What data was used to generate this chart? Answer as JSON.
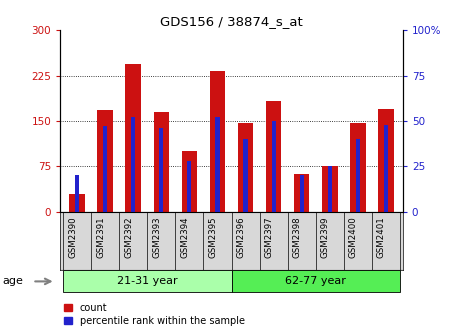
{
  "title": "GDS156 / 38874_s_at",
  "samples": [
    "GSM2390",
    "GSM2391",
    "GSM2392",
    "GSM2393",
    "GSM2394",
    "GSM2395",
    "GSM2396",
    "GSM2397",
    "GSM2398",
    "GSM2399",
    "GSM2400",
    "GSM2401"
  ],
  "counts": [
    30,
    168,
    245,
    165,
    100,
    232,
    147,
    183,
    62,
    75,
    147,
    170
  ],
  "percentiles": [
    20,
    47,
    52,
    46,
    28,
    52,
    40,
    50,
    20,
    25,
    40,
    48
  ],
  "group_labels": [
    "21-31 year",
    "62-77 year"
  ],
  "group1_color": "#aaffaa",
  "group2_color": "#55ee55",
  "bar_color_red": "#CC1111",
  "bar_color_blue": "#2222CC",
  "ylim_left": [
    0,
    300
  ],
  "ylim_right": [
    0,
    100
  ],
  "yticks_left": [
    0,
    75,
    150,
    225,
    300
  ],
  "yticks_right": [
    0,
    25,
    50,
    75,
    100
  ],
  "ytick_labels_left": [
    "0",
    "75",
    "150",
    "225",
    "300"
  ],
  "ytick_labels_right": [
    "0",
    "25",
    "50",
    "75",
    "100%"
  ],
  "left_tick_color": "#CC1111",
  "right_tick_color": "#2222CC",
  "background_color": "#ffffff",
  "grid_color": "#000000",
  "red_bar_width": 0.55,
  "blue_bar_width": 0.15
}
